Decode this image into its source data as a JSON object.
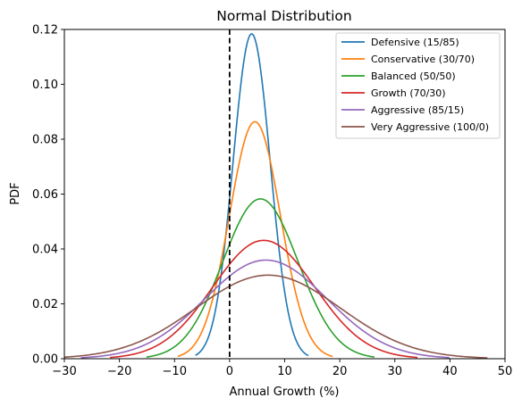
{
  "chart_data": {
    "type": "line",
    "title": "Normal Distribution",
    "xlabel": "Annual Growth (%)",
    "ylabel": "PDF",
    "xlim": [
      -30,
      50
    ],
    "ylim": [
      0,
      0.12
    ],
    "x_ticks": [
      -30,
      -20,
      -10,
      0,
      10,
      20,
      30,
      40,
      50
    ],
    "x_tick_labels": [
      "−30",
      "−20",
      "−10",
      "0",
      "10",
      "20",
      "30",
      "40",
      "50"
    ],
    "y_ticks": [
      0,
      0.02,
      0.04,
      0.06,
      0.08,
      0.1,
      0.12
    ],
    "y_tick_labels": [
      "0.00",
      "0.02",
      "0.04",
      "0.06",
      "0.08",
      "0.10",
      "0.12"
    ],
    "vline": {
      "x": 0,
      "style": "dashed",
      "color": "#000000"
    },
    "grid": false,
    "legend_position": "top-right",
    "series": [
      {
        "name": "Defensive (15/85)",
        "color": "#1f77b4",
        "mean": 4.0,
        "std": 3.37,
        "x_range": [
          -6.2,
          14.3
        ]
      },
      {
        "name": "Conservative (30/70)",
        "color": "#ff7f0e",
        "mean": 4.6,
        "std": 4.62,
        "x_range": [
          -9.4,
          18.7
        ]
      },
      {
        "name": "Balanced (50/50)",
        "color": "#2ca02c",
        "mean": 5.6,
        "std": 6.85,
        "x_range": [
          -15.1,
          26.3
        ]
      },
      {
        "name": "Growth (70/30)",
        "color": "#d62728",
        "mean": 6.2,
        "std": 9.25,
        "x_range": [
          -21.7,
          34.1
        ]
      },
      {
        "name": "Aggressive (85/15)",
        "color": "#9467bd",
        "mean": 6.6,
        "std": 11.1,
        "x_range": [
          -27.0,
          39.9
        ]
      },
      {
        "name": "Very Aggressive (100/0)",
        "color": "#8c564b",
        "mean": 7.0,
        "std": 13.1,
        "x_range": [
          -32.0,
          46.8
        ]
      }
    ]
  }
}
